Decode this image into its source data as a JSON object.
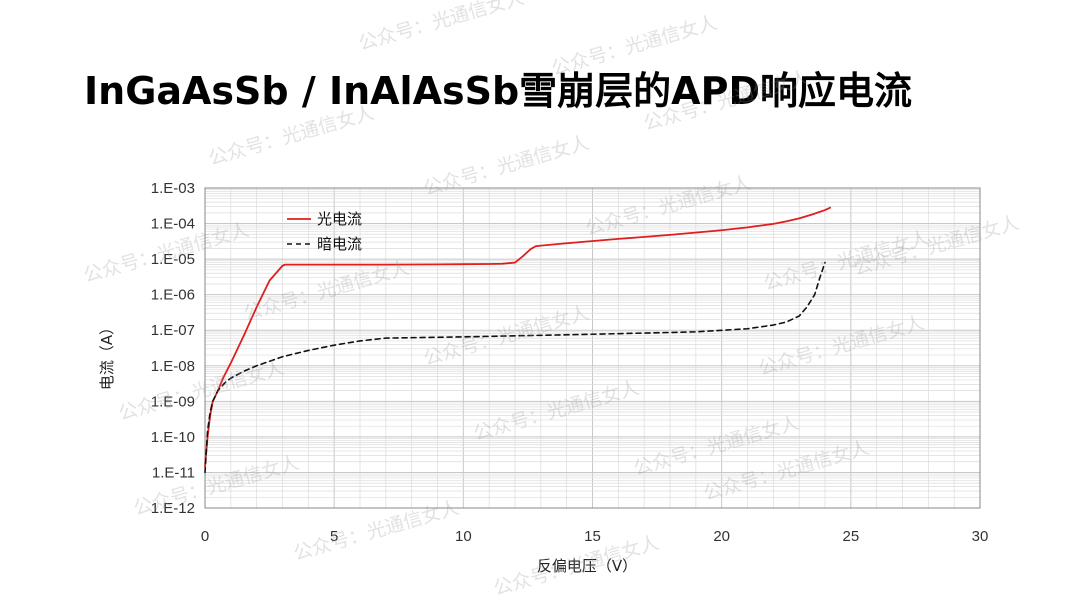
{
  "title": "InGaAsSb / InAlAsSb雪崩层的APD响应电流",
  "watermark_text": "公众号：光通信女人",
  "colors": {
    "photocurrent": "#e01e1e",
    "dark_current": "#111111",
    "grid": "#dcdcdc",
    "axis": "#888888"
  },
  "chart_data": {
    "type": "line",
    "title": "",
    "xlabel": "反偏电压（V）",
    "ylabel": "电流（A）",
    "xlim": [
      0,
      30
    ],
    "ylim": [
      1e-12,
      0.001
    ],
    "y_scale": "log",
    "grid": true,
    "legend_position": "top-left",
    "x_ticks": [
      "0",
      "5",
      "10",
      "15",
      "20",
      "25",
      "30"
    ],
    "y_ticks": [
      "1.E-12",
      "1.E-11",
      "1.E-10",
      "1.E-09",
      "1.E-08",
      "1.E-07",
      "1.E-06",
      "1.E-05",
      "1.E-04",
      "1.E-03"
    ],
    "series": [
      {
        "name": "光电流",
        "style": "solid",
        "color": "#e01e1e",
        "x": [
          0.0,
          0.1,
          0.2,
          0.3,
          0.5,
          0.7,
          1.0,
          1.5,
          2.0,
          2.5,
          3.0,
          3.1,
          3.5,
          5.0,
          7.0,
          9.0,
          10.0,
          11.0,
          11.5,
          12.0,
          12.3,
          12.6,
          12.8,
          13.0,
          14.0,
          16.0,
          18.0,
          20.0,
          21.0,
          22.0,
          22.5,
          23.0,
          23.5,
          24.0,
          24.2
        ],
        "y": [
          1.5e-11,
          1e-10,
          4e-10,
          1e-09,
          2e-09,
          4.5e-09,
          1.2e-08,
          7e-08,
          4.5e-07,
          2.5e-06,
          6.5e-06,
          7e-06,
          7e-06,
          7e-06,
          7e-06,
          7.1e-06,
          7.2e-06,
          7.3e-06,
          7.4e-06,
          8e-06,
          1.2e-05,
          1.9e-05,
          2.3e-05,
          2.4e-05,
          2.8e-05,
          3.7e-05,
          4.8e-05,
          6.5e-05,
          7.8e-05,
          9.8e-05,
          0.000115,
          0.00014,
          0.00018,
          0.00024,
          0.00028
        ]
      },
      {
        "name": "暗电流",
        "style": "dashed",
        "color": "#111111",
        "x": [
          0.0,
          0.1,
          0.2,
          0.3,
          0.5,
          0.8,
          1.0,
          1.5,
          2.0,
          3.0,
          4.0,
          5.0,
          6.0,
          7.0,
          10.0,
          13.0,
          16.0,
          19.0,
          21.0,
          22.0,
          22.5,
          23.0,
          23.3,
          23.6,
          23.8,
          24.0
        ],
        "y": [
          1e-11,
          1.5e-10,
          5e-10,
          1e-09,
          2e-09,
          3.5e-09,
          4.5e-09,
          7e-09,
          1e-08,
          1.8e-08,
          2.7e-08,
          3.8e-08,
          5e-08,
          6e-08,
          6.5e-08,
          7.2e-08,
          8e-08,
          9e-08,
          1.1e-07,
          1.4e-07,
          1.7e-07,
          2.5e-07,
          4.5e-07,
          1e-06,
          3e-06,
          8e-06
        ]
      }
    ]
  }
}
